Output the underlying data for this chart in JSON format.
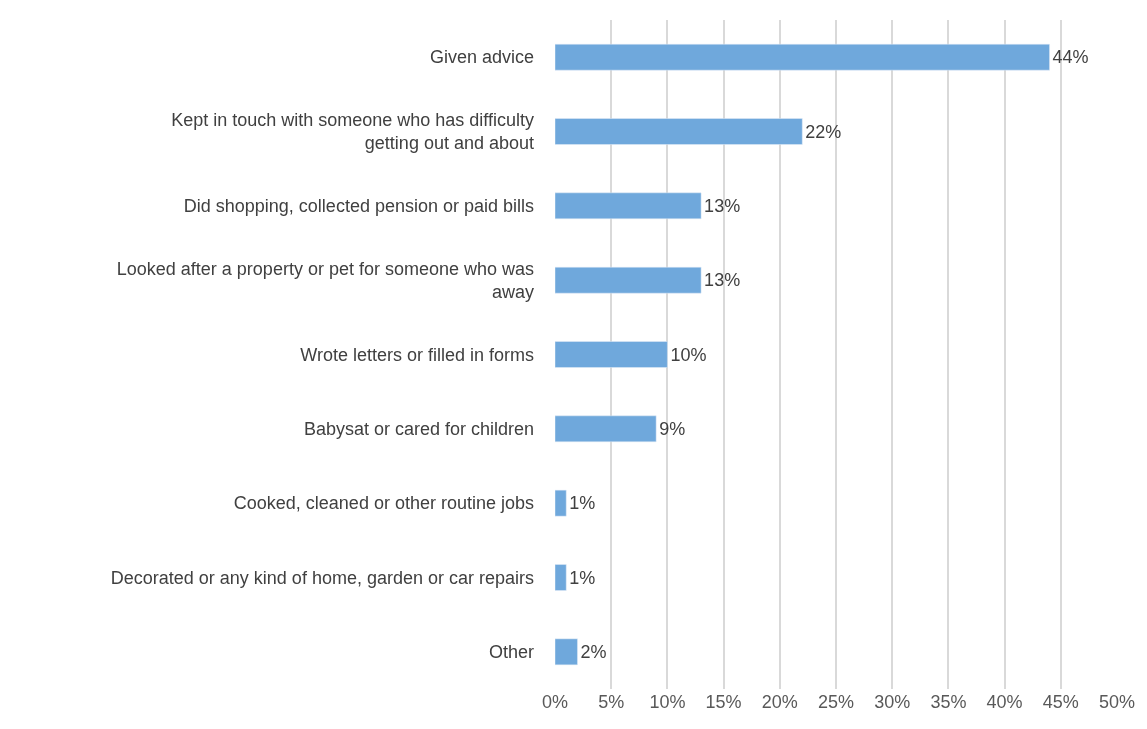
{
  "chart_data": {
    "type": "bar",
    "orientation": "horizontal",
    "categories": [
      "Given advice",
      "Kept in touch with someone who has difficulty getting out and about",
      "Did shopping, collected pension or paid bills",
      "Looked after a property or pet for someone who was away",
      "Wrote letters or filled in forms",
      "Babysat or cared for children",
      "Cooked, cleaned or other routine jobs",
      "Decorated or any kind of home, garden or car repairs",
      "Other"
    ],
    "values": [
      44,
      22,
      13,
      13,
      10,
      9,
      1,
      1,
      2
    ],
    "value_labels": [
      "44%",
      "22%",
      "13%",
      "13%",
      "10%",
      "9%",
      "1%",
      "1%",
      "2%"
    ],
    "color": "#6fa8dc",
    "xlim": [
      0,
      50
    ],
    "xticks": [
      {
        "value": 0,
        "label": "0%"
      },
      {
        "value": 5,
        "label": "5%"
      },
      {
        "value": 10,
        "label": "10%"
      },
      {
        "value": 15,
        "label": "15%"
      },
      {
        "value": 20,
        "label": "20%"
      },
      {
        "value": 25,
        "label": "25%"
      },
      {
        "value": 30,
        "label": "30%"
      },
      {
        "value": 35,
        "label": "35%"
      },
      {
        "value": 40,
        "label": "40%"
      },
      {
        "value": 45,
        "label": "45%"
      },
      {
        "value": 50,
        "label": "50%"
      }
    ],
    "grid": "x",
    "legend": false
  }
}
